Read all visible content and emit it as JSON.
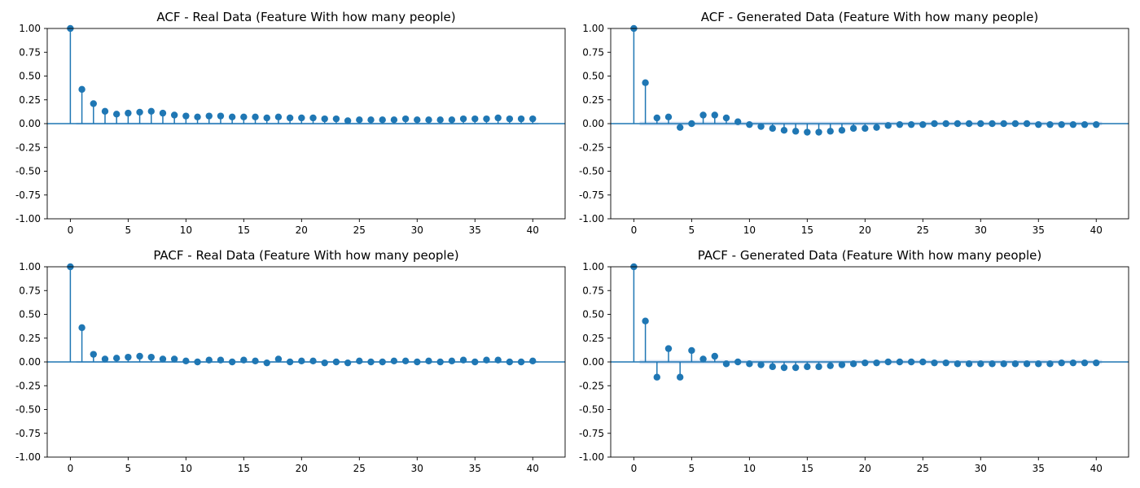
{
  "colors": {
    "stem": "#1f77b4",
    "band": "#aec7e8",
    "axis": "#000000"
  },
  "chart_data": [
    {
      "type": "stem",
      "title": "ACF - Real Data (Feature With how many people)",
      "xlabel": "",
      "ylabel": "",
      "xlim": [
        -2,
        42.8
      ],
      "ylim": [
        -1,
        1
      ],
      "yticks": [
        "1.00",
        "0.75",
        "0.50",
        "0.25",
        "0.00",
        "-0.25",
        "-0.50",
        "-0.75",
        "-1.00"
      ],
      "xticks": [
        "0",
        "5",
        "10",
        "15",
        "20",
        "25",
        "30",
        "35",
        "40"
      ],
      "confidence_band": 0.01,
      "x": [
        0,
        1,
        2,
        3,
        4,
        5,
        6,
        7,
        8,
        9,
        10,
        11,
        12,
        13,
        14,
        15,
        16,
        17,
        18,
        19,
        20,
        21,
        22,
        23,
        24,
        25,
        26,
        27,
        28,
        29,
        30,
        31,
        32,
        33,
        34,
        35,
        36,
        37,
        38,
        39,
        40
      ],
      "values": [
        1.0,
        0.36,
        0.21,
        0.13,
        0.1,
        0.11,
        0.12,
        0.13,
        0.11,
        0.09,
        0.08,
        0.07,
        0.08,
        0.08,
        0.07,
        0.07,
        0.07,
        0.06,
        0.07,
        0.06,
        0.06,
        0.06,
        0.05,
        0.05,
        0.03,
        0.04,
        0.04,
        0.04,
        0.04,
        0.05,
        0.04,
        0.04,
        0.04,
        0.04,
        0.05,
        0.05,
        0.05,
        0.06,
        0.05,
        0.05,
        0.05
      ]
    },
    {
      "type": "stem",
      "title": "ACF - Generated Data (Feature With how many people)",
      "xlabel": "",
      "ylabel": "",
      "xlim": [
        -2,
        42.8
      ],
      "ylim": [
        -1,
        1
      ],
      "yticks": [
        "1.00",
        "0.75",
        "0.50",
        "0.25",
        "0.00",
        "-0.25",
        "-0.50",
        "-0.75",
        "-1.00"
      ],
      "xticks": [
        "0",
        "5",
        "10",
        "15",
        "20",
        "25",
        "30",
        "35",
        "40"
      ],
      "confidence_band": 0.02,
      "x": [
        0,
        1,
        2,
        3,
        4,
        5,
        6,
        7,
        8,
        9,
        10,
        11,
        12,
        13,
        14,
        15,
        16,
        17,
        18,
        19,
        20,
        21,
        22,
        23,
        24,
        25,
        26,
        27,
        28,
        29,
        30,
        31,
        32,
        33,
        34,
        35,
        36,
        37,
        38,
        39,
        40
      ],
      "values": [
        1.0,
        0.43,
        0.06,
        0.07,
        -0.04,
        0.0,
        0.09,
        0.09,
        0.06,
        0.02,
        -0.01,
        -0.03,
        -0.05,
        -0.07,
        -0.08,
        -0.09,
        -0.09,
        -0.08,
        -0.07,
        -0.05,
        -0.05,
        -0.04,
        -0.02,
        -0.01,
        -0.01,
        -0.01,
        0.0,
        0.0,
        0.0,
        0.0,
        0.0,
        0.0,
        0.0,
        0.0,
        0.0,
        -0.01,
        -0.01,
        -0.01,
        -0.01,
        -0.01,
        -0.01
      ]
    },
    {
      "type": "stem",
      "title": "PACF - Real Data (Feature With how many people)",
      "xlabel": "",
      "ylabel": "",
      "xlim": [
        -2,
        42.8
      ],
      "ylim": [
        -1,
        1
      ],
      "yticks": [
        "1.00",
        "0.75",
        "0.50",
        "0.25",
        "0.00",
        "-0.25",
        "-0.50",
        "-0.75",
        "-1.00"
      ],
      "xticks": [
        "0",
        "5",
        "10",
        "15",
        "20",
        "25",
        "30",
        "35",
        "40"
      ],
      "confidence_band": 0.01,
      "x": [
        0,
        1,
        2,
        3,
        4,
        5,
        6,
        7,
        8,
        9,
        10,
        11,
        12,
        13,
        14,
        15,
        16,
        17,
        18,
        19,
        20,
        21,
        22,
        23,
        24,
        25,
        26,
        27,
        28,
        29,
        30,
        31,
        32,
        33,
        34,
        35,
        36,
        37,
        38,
        39,
        40
      ],
      "values": [
        1.0,
        0.36,
        0.08,
        0.03,
        0.04,
        0.05,
        0.06,
        0.05,
        0.03,
        0.03,
        0.01,
        0.0,
        0.02,
        0.02,
        0.0,
        0.02,
        0.01,
        -0.01,
        0.03,
        0.0,
        0.01,
        0.01,
        -0.01,
        0.0,
        -0.01,
        0.01,
        0.0,
        0.0,
        0.01,
        0.01,
        0.0,
        0.01,
        0.0,
        0.01,
        0.02,
        0.0,
        0.02,
        0.02,
        0.0,
        0.0,
        0.01
      ]
    },
    {
      "type": "stem",
      "title": "PACF - Generated Data (Feature With how many people)",
      "xlabel": "",
      "ylabel": "",
      "xlim": [
        -2,
        42.8
      ],
      "ylim": [
        -1,
        1
      ],
      "yticks": [
        "1.00",
        "0.75",
        "0.50",
        "0.25",
        "0.00",
        "-0.25",
        "-0.50",
        "-0.75",
        "-1.00"
      ],
      "xticks": [
        "0",
        "5",
        "10",
        "15",
        "20",
        "25",
        "30",
        "35",
        "40"
      ],
      "confidence_band": 0.02,
      "x": [
        0,
        1,
        2,
        3,
        4,
        5,
        6,
        7,
        8,
        9,
        10,
        11,
        12,
        13,
        14,
        15,
        16,
        17,
        18,
        19,
        20,
        21,
        22,
        23,
        24,
        25,
        26,
        27,
        28,
        29,
        30,
        31,
        32,
        33,
        34,
        35,
        36,
        37,
        38,
        39,
        40
      ],
      "values": [
        1.0,
        0.43,
        -0.16,
        0.14,
        -0.16,
        0.12,
        0.03,
        0.06,
        -0.02,
        0.0,
        -0.02,
        -0.03,
        -0.05,
        -0.06,
        -0.06,
        -0.05,
        -0.05,
        -0.04,
        -0.03,
        -0.02,
        -0.01,
        -0.01,
        0.0,
        0.0,
        0.0,
        0.0,
        -0.01,
        -0.01,
        -0.02,
        -0.02,
        -0.02,
        -0.02,
        -0.02,
        -0.02,
        -0.02,
        -0.02,
        -0.02,
        -0.01,
        -0.01,
        -0.01,
        -0.01
      ]
    }
  ]
}
